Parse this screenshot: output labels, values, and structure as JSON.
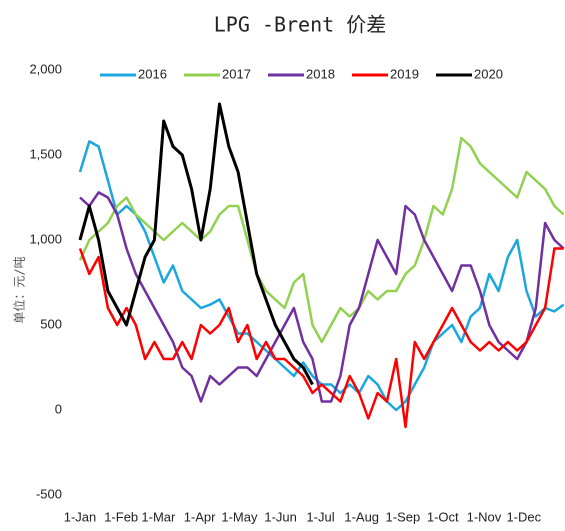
{
  "chart_data": {
    "type": "line",
    "title": "LPG -Brent 价差",
    "y_label": "单位：元/吨",
    "x": [
      0,
      7,
      14,
      21,
      28,
      35,
      42,
      49,
      56,
      63,
      70,
      77,
      84,
      91,
      98,
      105,
      112,
      119,
      126,
      133,
      140,
      147,
      154,
      161,
      168,
      175,
      182,
      189,
      196,
      203,
      210,
      217,
      224,
      231,
      238,
      245,
      252,
      259,
      266,
      273,
      280,
      287,
      294,
      301,
      308,
      315,
      322,
      329,
      336,
      343,
      350,
      357,
      364
    ],
    "xlim": [
      0,
      365
    ],
    "xticks": [
      {
        "value": 0,
        "label": "1-Jan"
      },
      {
        "value": 31,
        "label": "1-Feb"
      },
      {
        "value": 59,
        "label": "1-Mar"
      },
      {
        "value": 90,
        "label": "1-Apr"
      },
      {
        "value": 120,
        "label": "1-May"
      },
      {
        "value": 151,
        "label": "1-Jun"
      },
      {
        "value": 181,
        "label": "1-Jul"
      },
      {
        "value": 212,
        "label": "1-Aug"
      },
      {
        "value": 243,
        "label": "1-Sep"
      },
      {
        "value": 273,
        "label": "1-Oct"
      },
      {
        "value": 304,
        "label": "1-Nov"
      },
      {
        "value": 334,
        "label": "1-Dec"
      }
    ],
    "ylim": [
      -500,
      2000
    ],
    "yticks": [
      -500,
      0,
      500,
      {
        "value": 1000,
        "label": "1,000"
      },
      {
        "value": 1500,
        "label": "1,500"
      },
      {
        "value": 2000,
        "label": "2,000"
      }
    ],
    "legend": "top",
    "series": [
      {
        "name": "2016",
        "color": "#1aa7e0",
        "values": [
          1400,
          1580,
          1550,
          1350,
          1150,
          1200,
          1150,
          1050,
          900,
          750,
          850,
          700,
          650,
          600,
          620,
          650,
          550,
          450,
          450,
          400,
          350,
          300,
          250,
          200,
          280,
          200,
          150,
          150,
          100,
          150,
          100,
          200,
          150,
          50,
          0,
          50,
          150,
          250,
          400,
          450,
          500,
          400,
          550,
          600,
          800,
          700,
          900,
          1000,
          700,
          550,
          600,
          580,
          620
        ]
      },
      {
        "name": "2017",
        "color": "#92d050",
        "values": [
          880,
          1000,
          1050,
          1100,
          1200,
          1250,
          1150,
          1100,
          1050,
          1000,
          1050,
          1100,
          1050,
          1000,
          1050,
          1150,
          1200,
          1200,
          1000,
          800,
          700,
          650,
          600,
          750,
          800,
          500,
          400,
          500,
          600,
          550,
          600,
          700,
          650,
          700,
          700,
          800,
          850,
          1000,
          1200,
          1150,
          1300,
          1600,
          1550,
          1450,
          1400,
          1350,
          1300,
          1250,
          1400,
          1350,
          1300,
          1200,
          1150
        ]
      },
      {
        "name": "2018",
        "color": "#7030a0",
        "values": [
          1250,
          1200,
          1280,
          1250,
          1150,
          950,
          800,
          700,
          600,
          500,
          400,
          250,
          200,
          50,
          200,
          150,
          200,
          250,
          250,
          200,
          300,
          400,
          500,
          600,
          400,
          300,
          50,
          50,
          200,
          500,
          600,
          800,
          1000,
          900,
          800,
          1200,
          1150,
          1000,
          900,
          800,
          700,
          850,
          850,
          700,
          500,
          400,
          350,
          300,
          400,
          600,
          1100,
          1000,
          950
        ]
      },
      {
        "name": "2019",
        "color": "#ff0000",
        "values": [
          950,
          800,
          900,
          600,
          500,
          600,
          500,
          300,
          400,
          300,
          300,
          400,
          300,
          500,
          450,
          500,
          600,
          400,
          500,
          300,
          400,
          300,
          300,
          250,
          200,
          100,
          150,
          100,
          50,
          200,
          100,
          -50,
          100,
          50,
          300,
          -100,
          400,
          300,
          400,
          500,
          600,
          500,
          400,
          350,
          400,
          350,
          400,
          350,
          400,
          500,
          600,
          950,
          950
        ]
      },
      {
        "name": "2020",
        "color": "#000000",
        "values": [
          1000,
          1200,
          1000,
          700,
          600,
          500,
          700,
          900,
          1000,
          1700,
          1550,
          1500,
          1300,
          1000,
          1300,
          1800,
          1550,
          1400,
          1100,
          800,
          650,
          500,
          400,
          300,
          250,
          150,
          null,
          null,
          null,
          null,
          null,
          null,
          null,
          null,
          null,
          null,
          null,
          null,
          null,
          null,
          null,
          null,
          null,
          null,
          null,
          null,
          null,
          null,
          null,
          null,
          null,
          null,
          null
        ]
      }
    ]
  }
}
